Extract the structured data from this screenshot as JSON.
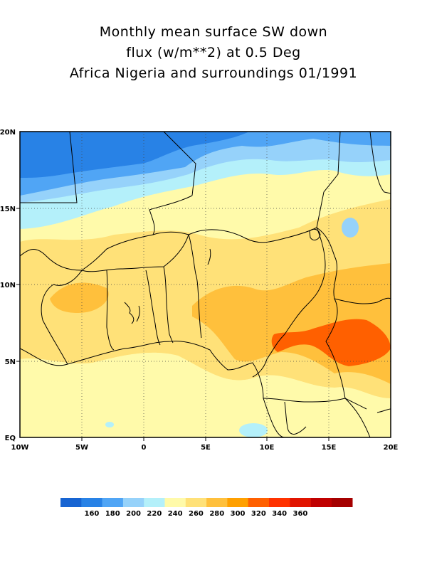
{
  "header": {
    "title_line1": "Monthly mean surface SW down",
    "title_line2": "flux (w/m**2) at 0.5 Deg",
    "title_line3": "Africa Nigeria and surroundings 01/1991"
  },
  "map": {
    "region": "Africa Nigeria and surroundings",
    "lon_range": [
      -10,
      20
    ],
    "lat_range": [
      0,
      20
    ],
    "x_ticks": [
      {
        "lon": -10,
        "label": "10W"
      },
      {
        "lon": -5,
        "label": "5W"
      },
      {
        "lon": 0,
        "label": "0"
      },
      {
        "lon": 5,
        "label": "5E"
      },
      {
        "lon": 10,
        "label": "10E"
      },
      {
        "lon": 15,
        "label": "15E"
      },
      {
        "lon": 20,
        "label": "20E"
      }
    ],
    "y_ticks": [
      {
        "lat": 0,
        "label": "EQ"
      },
      {
        "lat": 5,
        "label": "5N"
      },
      {
        "lat": 10,
        "label": "10N"
      },
      {
        "lat": 15,
        "label": "15N"
      },
      {
        "lat": 20,
        "label": "20N"
      }
    ],
    "grid": true,
    "field_summary": [
      {
        "area": "northern Mali / Niger (north of ~17N)",
        "value_band": "180-200"
      },
      {
        "area": "Sahel band ~14-17N",
        "value_band": "200-240"
      },
      {
        "area": "central Nigeria and Cameroon highlands",
        "value_band": "260-280"
      },
      {
        "area": "Cameroon / Central African Republic ~6-8N",
        "value_band": "280-300"
      },
      {
        "area": "Gulf of Guinea coast",
        "value_band": "220-260"
      }
    ]
  },
  "colorbar": {
    "colors": [
      "#1764d2",
      "#2882e6",
      "#50a5f5",
      "#96d2fa",
      "#b4f0fa",
      "#fffaaa",
      "#ffe178",
      "#ffc03c",
      "#ffa000",
      "#ff6000",
      "#ff3200",
      "#e11400",
      "#c00000",
      "#a50000"
    ],
    "labels": [
      "160",
      "180",
      "200",
      "220",
      "240",
      "260",
      "280",
      "300",
      "320",
      "340",
      "360"
    ]
  }
}
